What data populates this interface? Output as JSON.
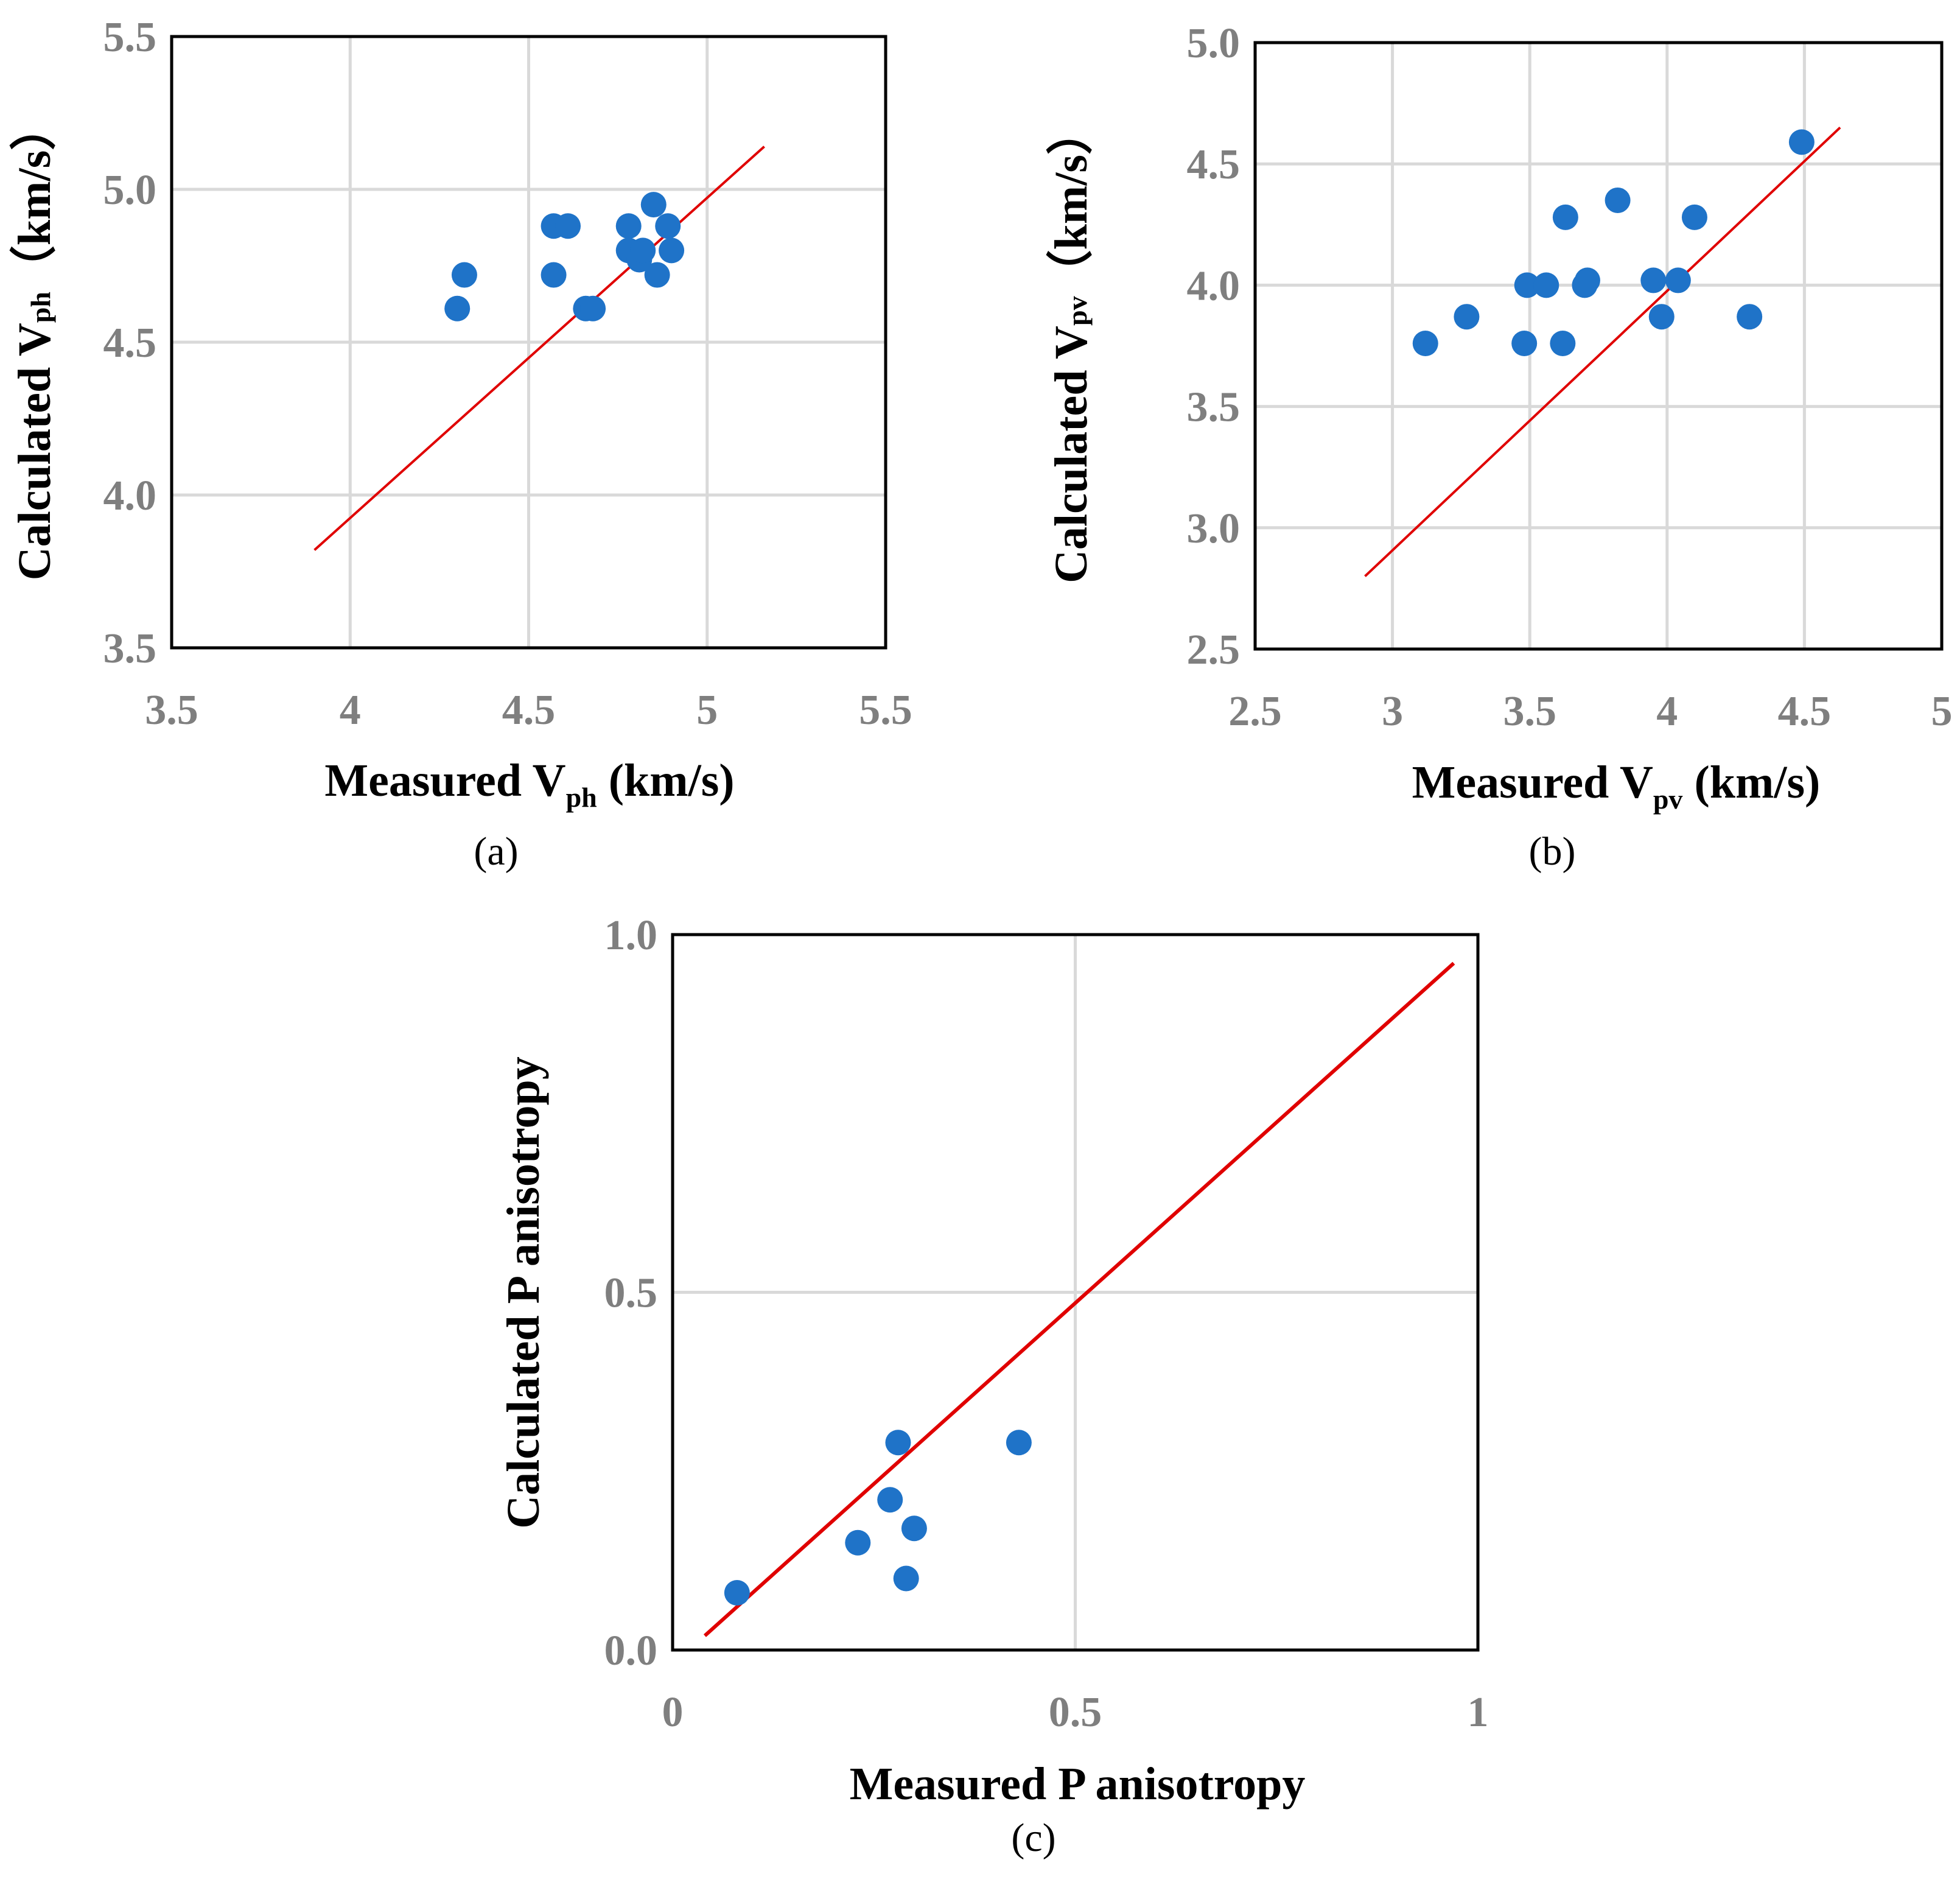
{
  "colors": {
    "points": "#1f73c8",
    "line": "#e00000",
    "grid": "#d9d9d9",
    "tick": "#7f7f7f"
  },
  "chart_data": [
    {
      "id": "a",
      "type": "scatter",
      "panel_label": "(a)",
      "xlabel": {
        "main": "Measured V",
        "sub": "ph",
        "tail": " (km/s)"
      },
      "ylabel": {
        "main": "Calculated V",
        "sub": "ph",
        "tail": "（km/s）"
      },
      "xlim": [
        3.5,
        5.5
      ],
      "ylim": [
        3.5,
        5.5
      ],
      "xticks": [
        3.5,
        4,
        4.5,
        5,
        5.5
      ],
      "xtick_labels": [
        "3.5",
        "4",
        "4.5",
        "5",
        "5.5"
      ],
      "yticks": [
        3.5,
        4.0,
        4.5,
        5.0,
        5.5
      ],
      "ytick_labels": [
        "3.5",
        "4.0",
        "4.5",
        "5.0",
        "5.5"
      ],
      "grid": true,
      "points": [
        [
          4.3,
          4.61
        ],
        [
          4.32,
          4.72
        ],
        [
          4.57,
          4.88
        ],
        [
          4.61,
          4.88
        ],
        [
          4.57,
          4.72
        ],
        [
          4.66,
          4.61
        ],
        [
          4.68,
          4.61
        ],
        [
          4.78,
          4.88
        ],
        [
          4.78,
          4.8
        ],
        [
          4.81,
          4.77
        ],
        [
          4.82,
          4.8
        ],
        [
          4.85,
          4.95
        ],
        [
          4.86,
          4.72
        ],
        [
          4.89,
          4.88
        ],
        [
          4.9,
          4.8
        ]
      ],
      "reference_line": [
        [
          3.9,
          3.82
        ],
        [
          5.16,
          5.14
        ]
      ]
    },
    {
      "id": "b",
      "type": "scatter",
      "panel_label": "(b)",
      "xlabel": {
        "main": "Measured V",
        "sub": "pv",
        "tail": " (km/s)"
      },
      "ylabel": {
        "main": "Calculated V",
        "sub": "pv",
        "tail": "（km/s）"
      },
      "xlim": [
        2.5,
        5
      ],
      "ylim": [
        2.5,
        5.0
      ],
      "xticks": [
        2.5,
        3,
        3.5,
        4,
        4.5,
        5
      ],
      "xtick_labels": [
        "2.5",
        "3",
        "3.5",
        "4",
        "4.5",
        "5"
      ],
      "yticks": [
        2.5,
        3.0,
        3.5,
        4.0,
        4.5,
        5.0
      ],
      "ytick_labels": [
        "2.5",
        "3.0",
        "3.5",
        "4.0",
        "4.5",
        "5.0"
      ],
      "grid": true,
      "points": [
        [
          3.12,
          3.76
        ],
        [
          3.27,
          3.87
        ],
        [
          3.48,
          3.76
        ],
        [
          3.49,
          4.0
        ],
        [
          3.56,
          4.0
        ],
        [
          3.62,
          3.76
        ],
        [
          3.63,
          4.28
        ],
        [
          3.7,
          4.0
        ],
        [
          3.71,
          4.02
        ],
        [
          3.82,
          4.35
        ],
        [
          3.95,
          4.02
        ],
        [
          3.98,
          3.87
        ],
        [
          4.04,
          4.02
        ],
        [
          4.1,
          4.28
        ],
        [
          4.3,
          3.87
        ],
        [
          4.49,
          4.59
        ]
      ],
      "reference_line": [
        [
          2.9,
          2.8
        ],
        [
          4.63,
          4.65
        ]
      ]
    },
    {
      "id": "c",
      "type": "scatter",
      "panel_label": "(c)",
      "xlabel": {
        "main": "Measured P anisotropy",
        "sub": "",
        "tail": ""
      },
      "ylabel": {
        "main": "Calculated P anisotropy",
        "sub": "",
        "tail": ""
      },
      "xlim": [
        0,
        1
      ],
      "ylim": [
        0,
        1.0
      ],
      "xticks": [
        0,
        0.5,
        1
      ],
      "xtick_labels": [
        "0",
        "0.5",
        "1"
      ],
      "yticks": [
        0.0,
        0.5,
        1.0
      ],
      "ytick_labels": [
        "0.0",
        "0.5",
        "1.0"
      ],
      "grid": true,
      "points": [
        [
          0.08,
          0.08
        ],
        [
          0.23,
          0.15
        ],
        [
          0.27,
          0.21
        ],
        [
          0.28,
          0.29
        ],
        [
          0.29,
          0.1
        ],
        [
          0.3,
          0.17
        ],
        [
          0.43,
          0.29
        ]
      ],
      "reference_line": [
        [
          0.04,
          0.02
        ],
        [
          0.97,
          0.96
        ]
      ]
    }
  ]
}
